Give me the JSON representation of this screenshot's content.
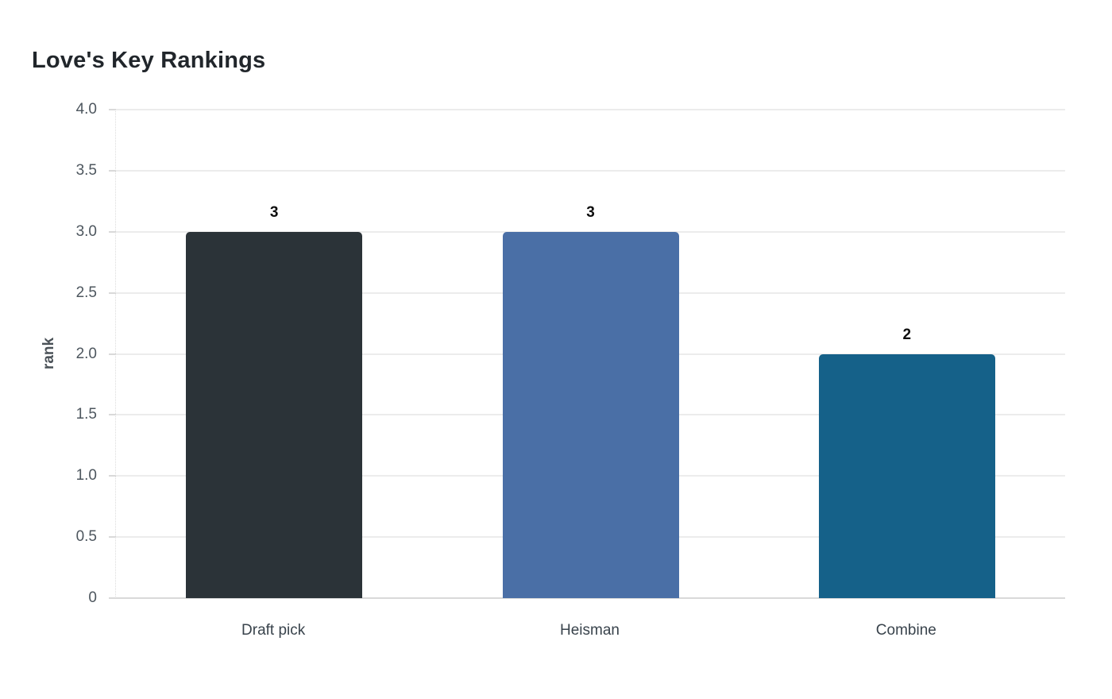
{
  "chart_data": {
    "type": "bar",
    "title": "Love's Key Rankings",
    "xlabel": "",
    "ylabel": "rank",
    "categories": [
      "Draft pick",
      "Heisman",
      "Combine"
    ],
    "values": [
      3,
      3,
      2
    ],
    "value_labels": [
      "3",
      "3",
      "2"
    ],
    "bar_colors": [
      "#2b3338",
      "#4a6fa6",
      "#156189"
    ],
    "ylim": [
      0,
      4
    ],
    "yticks": [
      0,
      0.5,
      1,
      1.5,
      2,
      2.5,
      3,
      3.5,
      4
    ],
    "ytick_labels": [
      "0",
      "0.5",
      "1.0",
      "1.5",
      "2.0",
      "2.5",
      "3.0",
      "3.5",
      "4.0"
    ],
    "grid": "horizontal-only",
    "legend_position": "none",
    "background_color": "#ffffff",
    "gridline_color": "#ececec",
    "axis_line_color": "#d9d9d9",
    "title_color": "#21262b",
    "tick_label_color": "#4d565e",
    "category_label_color": "#39434c",
    "value_label_color": "#0e0e0e"
  }
}
